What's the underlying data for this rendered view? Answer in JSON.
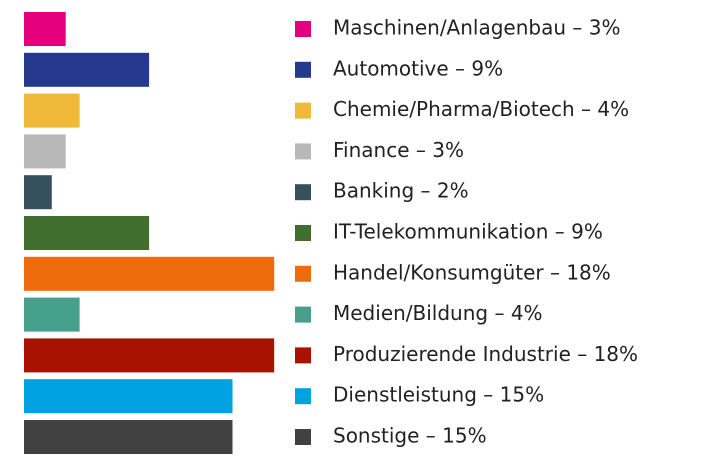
{
  "chart_data": {
    "type": "bar",
    "categories": [
      "Maschinen/Anlagenbau – 3%",
      "Automotive – 9%",
      "Chemie/Pharma/Biotech – 4%",
      "Finance – 3%",
      "Banking – 2%",
      "IT-Telekommunikation – 9%",
      "Handel/Konsumgüter – 18%",
      "Medien/Bildung – 4%",
      "Produzierende Industrie – 18%",
      "Dienstleistung – 15%",
      "Sonstige – 15%"
    ],
    "values": [
      3,
      9,
      4,
      3,
      2,
      9,
      18,
      4,
      18,
      15,
      15
    ],
    "colors": [
      "#e5007d",
      "#253a8c",
      "#f0b93a",
      "#b8b8b8",
      "#37505e",
      "#3f6e2e",
      "#ee6c0c",
      "#46a08c",
      "#a81200",
      "#00a2e2",
      "#414141"
    ]
  }
}
